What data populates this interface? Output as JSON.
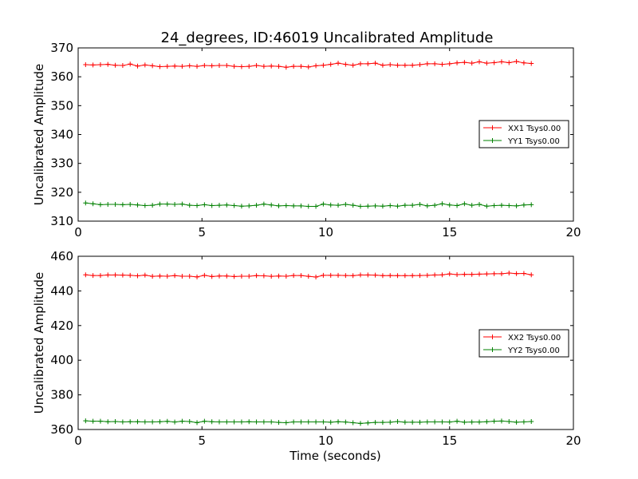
{
  "chart_data": [
    {
      "type": "line",
      "title": "24_degrees, ID:46019 Uncalibrated Amplitude",
      "xlabel": "",
      "ylabel": "Uncalibrated Amplitude",
      "xlim": [
        0,
        20
      ],
      "ylim": [
        310,
        370
      ],
      "xticks": [
        0,
        5,
        10,
        15,
        20
      ],
      "yticks": [
        310,
        320,
        330,
        340,
        350,
        360,
        370
      ],
      "grid": false,
      "legend_position": "right",
      "x": [
        0.3,
        0.6,
        0.9,
        1.2,
        1.5,
        1.8,
        2.1,
        2.4,
        2.7,
        3.0,
        3.3,
        3.6,
        3.9,
        4.2,
        4.5,
        4.8,
        5.1,
        5.4,
        5.7,
        6.0,
        6.3,
        6.6,
        6.9,
        7.2,
        7.5,
        7.8,
        8.1,
        8.4,
        8.7,
        9.0,
        9.3,
        9.6,
        9.9,
        10.2,
        10.5,
        10.8,
        11.1,
        11.4,
        11.7,
        12.0,
        12.3,
        12.6,
        12.9,
        13.2,
        13.5,
        13.8,
        14.1,
        14.4,
        14.7,
        15.0,
        15.3,
        15.6,
        15.9,
        16.2,
        16.5,
        16.8,
        17.1,
        17.4,
        17.7,
        18.0,
        18.3
      ],
      "series": [
        {
          "name": "XX1 Tsys0.00",
          "color": "#ff0000",
          "values": [
            364.2,
            364.1,
            364.2,
            364.3,
            364.0,
            363.9,
            364.4,
            363.7,
            364.1,
            363.8,
            363.5,
            363.6,
            363.7,
            363.6,
            363.8,
            363.6,
            363.9,
            363.8,
            363.9,
            363.9,
            363.6,
            363.5,
            363.6,
            363.9,
            363.6,
            363.7,
            363.6,
            363.3,
            363.6,
            363.6,
            363.4,
            363.8,
            364.0,
            364.3,
            364.7,
            364.3,
            364.0,
            364.5,
            364.5,
            364.7,
            364.0,
            364.2,
            364.0,
            364.0,
            364.0,
            364.2,
            364.5,
            364.5,
            364.3,
            364.5,
            364.8,
            365.0,
            364.7,
            365.2,
            364.7,
            364.9,
            365.2,
            364.9,
            365.3,
            364.8,
            364.6
          ]
        },
        {
          "name": "YY1 Tsys0.00",
          "color": "#008000",
          "values": [
            316.3,
            316.0,
            315.7,
            315.8,
            315.8,
            315.7,
            315.8,
            315.6,
            315.4,
            315.5,
            315.9,
            315.9,
            315.8,
            315.9,
            315.5,
            315.4,
            315.7,
            315.4,
            315.5,
            315.6,
            315.4,
            315.2,
            315.3,
            315.5,
            315.9,
            315.6,
            315.3,
            315.4,
            315.3,
            315.3,
            315.1,
            315.1,
            315.9,
            315.6,
            315.5,
            315.8,
            315.5,
            315.1,
            315.2,
            315.3,
            315.2,
            315.4,
            315.2,
            315.5,
            315.5,
            315.8,
            315.3,
            315.5,
            316.0,
            315.6,
            315.4,
            316.0,
            315.5,
            315.8,
            315.2,
            315.4,
            315.5,
            315.4,
            315.3,
            315.6,
            315.7
          ]
        }
      ]
    },
    {
      "type": "line",
      "title": "",
      "xlabel": "Time (seconds)",
      "ylabel": "Uncalibrated Amplitude",
      "xlim": [
        0,
        20
      ],
      "ylim": [
        360,
        460
      ],
      "xticks": [
        0,
        5,
        10,
        15,
        20
      ],
      "yticks": [
        360,
        380,
        400,
        420,
        440,
        460
      ],
      "grid": false,
      "legend_position": "right",
      "x": [
        0.3,
        0.6,
        0.9,
        1.2,
        1.5,
        1.8,
        2.1,
        2.4,
        2.7,
        3.0,
        3.3,
        3.6,
        3.9,
        4.2,
        4.5,
        4.8,
        5.1,
        5.4,
        5.7,
        6.0,
        6.3,
        6.6,
        6.9,
        7.2,
        7.5,
        7.8,
        8.1,
        8.4,
        8.7,
        9.0,
        9.3,
        9.6,
        9.9,
        10.2,
        10.5,
        10.8,
        11.1,
        11.4,
        11.7,
        12.0,
        12.3,
        12.6,
        12.9,
        13.2,
        13.5,
        13.8,
        14.1,
        14.4,
        14.7,
        15.0,
        15.3,
        15.6,
        15.9,
        16.2,
        16.5,
        16.8,
        17.1,
        17.4,
        17.7,
        18.0,
        18.3
      ],
      "series": [
        {
          "name": "XX2 Tsys0.00",
          "color": "#ff0000",
          "values": [
            449.3,
            448.9,
            448.9,
            449.2,
            449.2,
            449.1,
            449.0,
            448.7,
            449.1,
            448.4,
            448.6,
            448.5,
            448.8,
            448.5,
            448.5,
            448.1,
            449.0,
            448.3,
            448.6,
            448.6,
            448.3,
            448.5,
            448.5,
            448.8,
            448.7,
            448.4,
            448.6,
            448.5,
            448.9,
            448.9,
            448.4,
            448.0,
            449.0,
            449.0,
            449.0,
            448.9,
            448.8,
            449.2,
            449.2,
            449.1,
            448.8,
            448.9,
            448.8,
            448.8,
            448.8,
            448.9,
            449.0,
            449.2,
            449.3,
            449.8,
            449.4,
            449.6,
            449.5,
            449.7,
            449.8,
            449.9,
            449.9,
            450.3,
            450.0,
            450.1,
            449.3
          ]
        },
        {
          "name": "YY2 Tsys0.00",
          "color": "#008000",
          "values": [
            365.0,
            364.8,
            364.8,
            364.5,
            364.6,
            364.4,
            364.5,
            364.5,
            364.4,
            364.4,
            364.5,
            364.7,
            364.3,
            364.8,
            364.6,
            364.0,
            364.8,
            364.5,
            364.4,
            364.4,
            364.4,
            364.4,
            364.5,
            364.4,
            364.4,
            364.4,
            364.1,
            363.9,
            364.4,
            364.4,
            364.4,
            364.4,
            364.4,
            364.2,
            364.5,
            364.3,
            363.9,
            363.5,
            363.8,
            364.1,
            364.1,
            364.2,
            364.6,
            364.2,
            364.2,
            364.2,
            364.4,
            364.4,
            364.4,
            364.3,
            364.8,
            364.2,
            364.3,
            364.3,
            364.5,
            364.8,
            364.9,
            364.6,
            364.2,
            364.4,
            364.6
          ]
        }
      ]
    }
  ]
}
